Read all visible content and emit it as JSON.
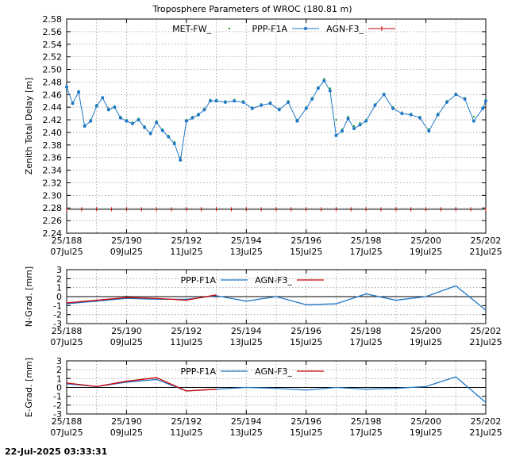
{
  "chart_data": [
    {
      "id": "ztd",
      "type": "scatter",
      "title": "Troposphere Parameters of WROC (180.81 m)",
      "xlabel": "",
      "ylabel": "Zenith Total Delay [m]",
      "xlim": [
        188,
        202
      ],
      "ylim": [
        2.24,
        2.58
      ],
      "yticks": [
        2.24,
        2.26,
        2.28,
        2.3,
        2.32,
        2.34,
        2.36,
        2.38,
        2.4,
        2.42,
        2.44,
        2.46,
        2.48,
        2.5,
        2.52,
        2.54,
        2.56,
        2.58
      ],
      "ytick_labels": [
        "2.24",
        "2.26",
        "2.28",
        "2.30",
        "2.32",
        "2.34",
        "2.36",
        "2.38",
        "2.40",
        "2.42",
        "2.44",
        "2.46",
        "2.48",
        "2.50",
        "2.52",
        "2.54",
        "2.56",
        "2.58"
      ],
      "xtick_labels": [
        {
          "x": 188,
          "doy": "25/188",
          "date": "07Jul25"
        },
        {
          "x": 190,
          "doy": "25/190",
          "date": "09Jul25"
        },
        {
          "x": 192,
          "doy": "25/192",
          "date": "11Jul25"
        },
        {
          "x": 194,
          "doy": "25/194",
          "date": "13Jul25"
        },
        {
          "x": 196,
          "doy": "25/196",
          "date": "15Jul25"
        },
        {
          "x": 198,
          "doy": "25/198",
          "date": "17Jul25"
        },
        {
          "x": 200,
          "doy": "25/200",
          "date": "19Jul25"
        },
        {
          "x": 202,
          "doy": "25/202",
          "date": "21Jul25"
        }
      ],
      "grid": true,
      "legend_position": "top-center",
      "series": [
        {
          "name": "MET-FW_",
          "color": "#1a9e1a",
          "style": "points",
          "x": [
            188.0,
            188.2,
            188.4,
            188.6,
            188.8,
            189.0,
            189.2,
            189.4,
            189.6,
            189.8,
            190.0,
            190.2,
            190.4,
            190.6,
            190.8,
            191.0,
            191.2,
            191.4,
            191.6,
            191.8,
            192.0,
            192.2,
            192.4,
            192.6,
            192.8,
            193.0,
            193.3,
            193.6,
            193.9,
            194.2,
            194.5,
            194.8,
            195.1,
            195.4,
            195.7,
            196.0,
            196.2,
            196.4,
            196.6,
            196.8,
            197.0,
            197.2,
            197.4,
            197.6,
            197.8,
            198.0,
            198.3,
            198.6,
            198.9,
            199.2,
            199.5,
            199.8,
            200.1,
            200.4,
            200.7,
            201.0,
            201.3,
            201.6,
            201.9,
            202.0
          ],
          "y": [
            2.47,
            2.448,
            2.466,
            2.412,
            2.42,
            2.444,
            2.456,
            2.438,
            2.442,
            2.425,
            2.42,
            2.416,
            2.422,
            2.41,
            2.4,
            2.418,
            2.405,
            2.395,
            2.385,
            2.36,
            2.42,
            2.425,
            2.43,
            2.438,
            2.452,
            2.452,
            2.45,
            2.452,
            2.45,
            2.44,
            2.445,
            2.448,
            2.438,
            2.45,
            2.42,
            2.44,
            2.455,
            2.472,
            2.485,
            2.47,
            2.42,
            2.405,
            2.425,
            2.41,
            2.415,
            2.42,
            2.445,
            2.462,
            2.44,
            2.432,
            2.43,
            2.425,
            2.405,
            2.43,
            2.45,
            2.462,
            2.455,
            2.425,
            2.44,
            2.452
          ]
        },
        {
          "name": "PPP-F1A",
          "color": "#1f78c8",
          "style": "points",
          "x": [
            188.0,
            188.2,
            188.4,
            188.6,
            188.8,
            189.0,
            189.2,
            189.4,
            189.6,
            189.8,
            190.0,
            190.2,
            190.4,
            190.6,
            190.8,
            191.0,
            191.2,
            191.4,
            191.6,
            191.8,
            192.0,
            192.2,
            192.4,
            192.6,
            192.8,
            193.0,
            193.3,
            193.6,
            193.9,
            194.2,
            194.5,
            194.8,
            195.1,
            195.4,
            195.7,
            196.0,
            196.2,
            196.4,
            196.6,
            196.8,
            197.0,
            197.2,
            197.4,
            197.6,
            197.8,
            198.0,
            198.3,
            198.6,
            198.9,
            199.2,
            199.5,
            199.8,
            200.1,
            200.4,
            200.7,
            201.0,
            201.3,
            201.6,
            201.9,
            202.0
          ],
          "y": [
            2.472,
            2.446,
            2.464,
            2.41,
            2.418,
            2.442,
            2.455,
            2.436,
            2.44,
            2.423,
            2.418,
            2.414,
            2.42,
            2.408,
            2.398,
            2.416,
            2.403,
            2.393,
            2.382,
            2.356,
            2.418,
            2.423,
            2.428,
            2.436,
            2.45,
            2.45,
            2.448,
            2.45,
            2.448,
            2.438,
            2.443,
            2.446,
            2.436,
            2.448,
            2.418,
            2.438,
            2.453,
            2.47,
            2.482,
            2.466,
            2.395,
            2.402,
            2.422,
            2.406,
            2.412,
            2.418,
            2.443,
            2.46,
            2.438,
            2.43,
            2.428,
            2.423,
            2.402,
            2.428,
            2.448,
            2.46,
            2.453,
            2.418,
            2.438,
            2.45
          ]
        },
        {
          "name": "AGN-F3_",
          "color": "#cc0000",
          "style": "points",
          "x": [
            188.0,
            188.5,
            189.0,
            189.5,
            190.0,
            190.5,
            191.0,
            191.5,
            192.0,
            192.5,
            193.0,
            193.5,
            194.0,
            194.5,
            195.0,
            195.5,
            196.0,
            196.5,
            197.0,
            197.5,
            198.0,
            198.5,
            199.0,
            199.5,
            200.0,
            200.5,
            201.0,
            201.5,
            202.0
          ],
          "y": [
            2.278,
            2.278,
            2.278,
            2.278,
            2.278,
            2.278,
            2.278,
            2.278,
            2.278,
            2.278,
            2.278,
            2.278,
            2.278,
            2.278,
            2.278,
            2.278,
            2.278,
            2.278,
            2.278,
            2.278,
            2.278,
            2.278,
            2.278,
            2.278,
            2.278,
            2.278,
            2.278,
            2.278,
            2.278
          ]
        }
      ]
    },
    {
      "id": "ngrad",
      "type": "line",
      "title": "",
      "xlabel": "",
      "ylabel": "N-Grad. [mm]",
      "xlim": [
        188,
        202
      ],
      "ylim": [
        -3,
        3
      ],
      "yticks": [
        -3,
        -2,
        -1,
        0,
        1,
        2,
        3
      ],
      "ytick_labels": [
        "-3",
        "-2",
        "-1",
        "0",
        "1",
        "2",
        "3"
      ],
      "xtick_labels": [
        {
          "x": 188,
          "doy": "25/188",
          "date": "07Jul25"
        },
        {
          "x": 190,
          "doy": "25/190",
          "date": "09Jul25"
        },
        {
          "x": 192,
          "doy": "25/192",
          "date": "11Jul25"
        },
        {
          "x": 194,
          "doy": "25/194",
          "date": "13Jul25"
        },
        {
          "x": 196,
          "doy": "25/196",
          "date": "15Jul25"
        },
        {
          "x": 198,
          "doy": "25/198",
          "date": "17Jul25"
        },
        {
          "x": 200,
          "doy": "25/200",
          "date": "19Jul25"
        },
        {
          "x": 202,
          "doy": "25/202",
          "date": "21Jul25"
        }
      ],
      "grid": true,
      "legend_position": "top-center",
      "series": [
        {
          "name": "PPP-F1A",
          "color": "#1f78c8",
          "x": [
            188,
            189,
            190,
            191,
            192,
            193,
            194,
            195,
            196,
            197,
            198,
            199,
            200,
            201,
            202
          ],
          "y": [
            -0.8,
            -0.5,
            -0.2,
            -0.3,
            -0.3,
            0.1,
            -0.5,
            0.0,
            -0.9,
            -0.8,
            0.3,
            -0.4,
            0.0,
            1.2,
            -1.5
          ]
        },
        {
          "name": "AGN-F3_",
          "color": "#cc0000",
          "x": [
            188,
            189,
            190,
            191,
            192,
            193
          ],
          "y": [
            -0.7,
            -0.4,
            -0.1,
            -0.2,
            -0.4,
            0.2
          ]
        }
      ]
    },
    {
      "id": "egrad",
      "type": "line",
      "title": "",
      "xlabel": "",
      "ylabel": "E-Grad. [mm]",
      "xlim": [
        188,
        202
      ],
      "ylim": [
        -3,
        3
      ],
      "yticks": [
        -3,
        -2,
        -1,
        0,
        1,
        2,
        3
      ],
      "ytick_labels": [
        "-3",
        "-2",
        "-1",
        "0",
        "1",
        "2",
        "3"
      ],
      "xtick_labels": [
        {
          "x": 188,
          "doy": "25/188",
          "date": "07Jul25"
        },
        {
          "x": 190,
          "doy": "25/190",
          "date": "09Jul25"
        },
        {
          "x": 192,
          "doy": "25/192",
          "date": "11Jul25"
        },
        {
          "x": 194,
          "doy": "25/194",
          "date": "13Jul25"
        },
        {
          "x": 196,
          "doy": "25/196",
          "date": "15Jul25"
        },
        {
          "x": 198,
          "doy": "25/198",
          "date": "17Jul25"
        },
        {
          "x": 200,
          "doy": "25/200",
          "date": "19Jul25"
        },
        {
          "x": 202,
          "doy": "25/202",
          "date": "21Jul25"
        }
      ],
      "grid": true,
      "legend_position": "top-center",
      "series": [
        {
          "name": "PPP-F1A",
          "color": "#1f78c8",
          "x": [
            188,
            189,
            190,
            191,
            192,
            193,
            194,
            195,
            196,
            197,
            198,
            199,
            200,
            201,
            202
          ],
          "y": [
            0.4,
            0.1,
            0.6,
            0.9,
            -0.4,
            -0.2,
            0.0,
            -0.1,
            -0.3,
            0.0,
            -0.2,
            -0.1,
            0.1,
            1.2,
            -1.7
          ]
        },
        {
          "name": "AGN-F3_",
          "color": "#cc0000",
          "x": [
            188,
            189,
            190,
            191,
            192,
            193
          ],
          "y": [
            0.5,
            0.1,
            0.7,
            1.1,
            -0.4,
            -0.2
          ]
        }
      ]
    }
  ],
  "footer": {
    "timestamp": "22-Jul-2025 03:33:31"
  }
}
